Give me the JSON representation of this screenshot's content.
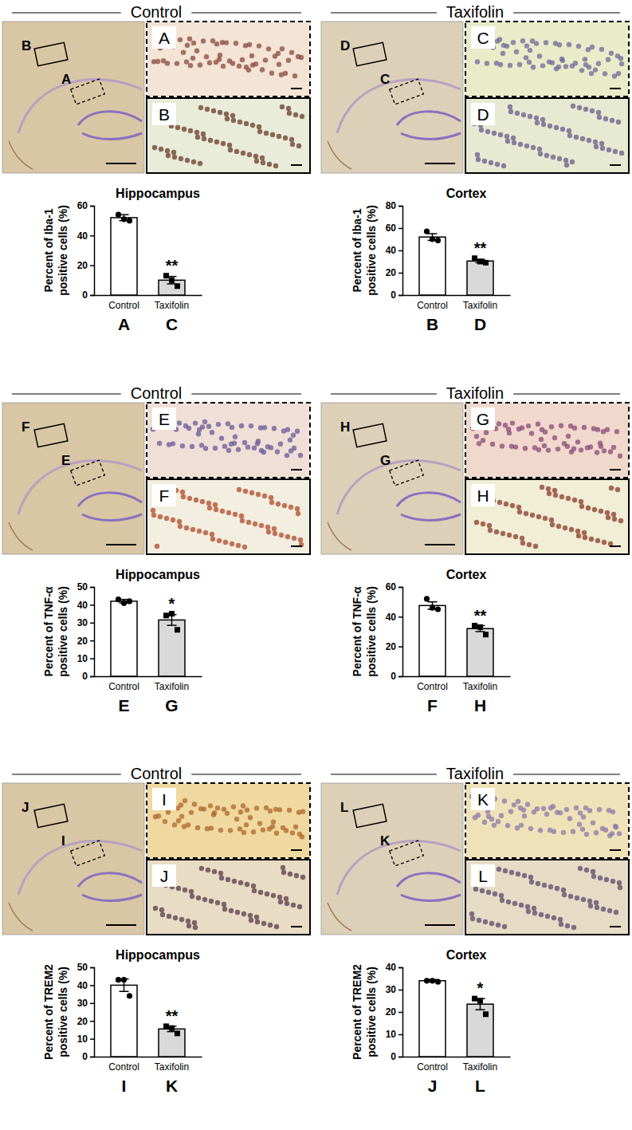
{
  "panels": [
    {
      "header": "Control",
      "dashed": "A",
      "solid": "B"
    },
    {
      "header": "Taxifolin",
      "dashed": "C",
      "solid": "D"
    },
    {
      "header": "Control",
      "dashed": "E",
      "solid": "F"
    },
    {
      "header": "Taxifolin",
      "dashed": "G",
      "solid": "H"
    },
    {
      "header": "Control",
      "dashed": "I",
      "solid": "J"
    },
    {
      "header": "Taxifolin",
      "dashed": "K",
      "solid": "L"
    }
  ],
  "chart_data": [
    {
      "type": "bar",
      "title": "Hippocampus",
      "y_label": [
        "Percent of Iba-1",
        "positive cells (%)"
      ],
      "categories": [
        "Control",
        "Taxifolin"
      ],
      "letters": [
        "A",
        "C"
      ],
      "values": [
        52,
        10
      ],
      "errors": [
        2,
        2.5
      ],
      "points": [
        [
          54,
          51,
          50
        ],
        [
          13,
          10,
          6
        ]
      ],
      "markers": [
        "circle",
        "square"
      ],
      "colors": [
        "#ffffff",
        "#d9d9d9"
      ],
      "significance": "**",
      "ylim": [
        0,
        60
      ],
      "yticks": [
        0,
        20,
        40,
        60
      ]
    },
    {
      "type": "bar",
      "title": "Cortex",
      "y_label": [
        "Percent of Iba-1",
        "positive cells (%)"
      ],
      "categories": [
        "Control",
        "Taxifolin"
      ],
      "letters": [
        "B",
        "D"
      ],
      "values": [
        52,
        30.5
      ],
      "errors": [
        3,
        1.5
      ],
      "points": [
        [
          57,
          50,
          49
        ],
        [
          33,
          30,
          29
        ]
      ],
      "markers": [
        "circle",
        "square"
      ],
      "colors": [
        "#ffffff",
        "#d9d9d9"
      ],
      "significance": "**",
      "ylim": [
        0,
        80
      ],
      "yticks": [
        0,
        20,
        40,
        60,
        80
      ]
    },
    {
      "type": "bar",
      "title": "Hippocampus",
      "y_label": [
        "Percent of TNF-α",
        "positive cells (%)"
      ],
      "categories": [
        "Control",
        "Taxifolin"
      ],
      "letters": [
        "E",
        "G"
      ],
      "values": [
        42,
        31.5
      ],
      "errors": [
        1,
        3
      ],
      "points": [
        [
          43,
          41,
          42
        ],
        [
          34,
          35,
          26
        ]
      ],
      "markers": [
        "circle",
        "square"
      ],
      "colors": [
        "#ffffff",
        "#d9d9d9"
      ],
      "significance": "*",
      "ylim": [
        0,
        50
      ],
      "yticks": [
        0,
        10,
        20,
        30,
        40,
        50
      ]
    },
    {
      "type": "bar",
      "title": "Cortex",
      "y_label": [
        "Percent of TNF-α",
        "positive cells (%)"
      ],
      "categories": [
        "Control",
        "Taxifolin"
      ],
      "letters": [
        "F",
        "H"
      ],
      "values": [
        47.5,
        32
      ],
      "errors": [
        2.5,
        2
      ],
      "points": [
        [
          52,
          46,
          45
        ],
        [
          34,
          33,
          28
        ]
      ],
      "markers": [
        "circle",
        "square"
      ],
      "colors": [
        "#ffffff",
        "#d9d9d9"
      ],
      "significance": "**",
      "ylim": [
        0,
        60
      ],
      "yticks": [
        0,
        20,
        40,
        60
      ]
    },
    {
      "type": "bar",
      "title": "Hippocampus",
      "y_label": [
        "Percent of TREM2",
        "positive cells (%)"
      ],
      "categories": [
        "Control",
        "Taxifolin"
      ],
      "letters": [
        "I",
        "K"
      ],
      "values": [
        40,
        15.5
      ],
      "errors": [
        3.5,
        1.5
      ],
      "points": [
        [
          43,
          43,
          34
        ],
        [
          17,
          16,
          13
        ]
      ],
      "markers": [
        "circle",
        "square"
      ],
      "colors": [
        "#ffffff",
        "#d9d9d9"
      ],
      "significance": "**",
      "ylim": [
        0,
        50
      ],
      "yticks": [
        0,
        10,
        20,
        30,
        40,
        50
      ]
    },
    {
      "type": "bar",
      "title": "Cortex",
      "y_label": [
        "Percent of TREM2",
        "positive cells (%)"
      ],
      "categories": [
        "Control",
        "Taxifolin"
      ],
      "letters": [
        "J",
        "L"
      ],
      "values": [
        34,
        23.5
      ],
      "errors": [
        0.5,
        2.5
      ],
      "points": [
        [
          34,
          34,
          33.5
        ],
        [
          26,
          25,
          19
        ]
      ],
      "markers": [
        "circle",
        "square"
      ],
      "colors": [
        "#ffffff",
        "#d9d9d9"
      ],
      "significance": "*",
      "ylim": [
        0,
        40
      ],
      "yticks": [
        0,
        10,
        20,
        30,
        40
      ]
    }
  ]
}
